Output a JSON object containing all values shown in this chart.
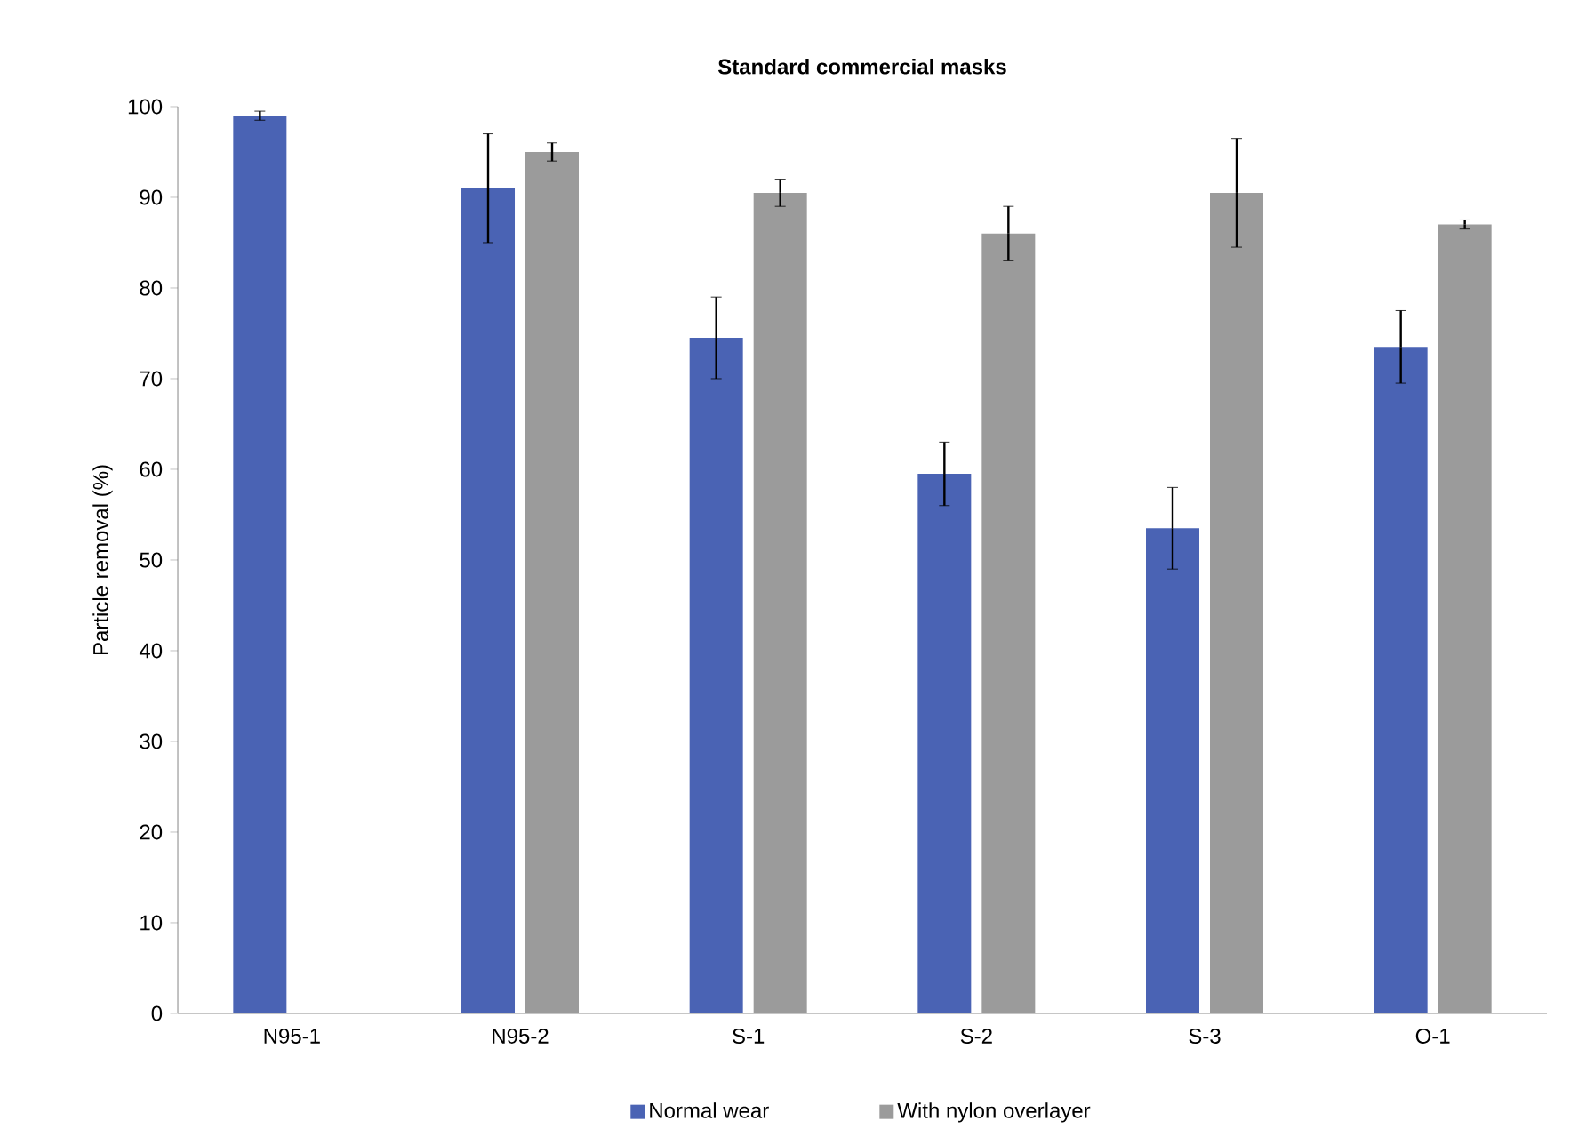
{
  "chart_data": {
    "type": "bar",
    "title": "Standard commercial masks",
    "ylabel": "Particle removal (%)",
    "categories": [
      "N95-1",
      "N95-2",
      "S-1",
      "S-2",
      "S-3",
      "O-1"
    ],
    "series": [
      {
        "name": "Normal wear",
        "color": "#4a63b4",
        "values": [
          99,
          91,
          74.5,
          59.5,
          53.5,
          73.5
        ],
        "errors": [
          0.5,
          6,
          4.5,
          3.5,
          4.5,
          4
        ]
      },
      {
        "name": "With nylon overlayer",
        "color": "#9b9b9b",
        "values": [
          null,
          95,
          90.5,
          86,
          90.5,
          87
        ],
        "errors": [
          null,
          1,
          1.5,
          3,
          6,
          0.5
        ]
      }
    ],
    "ylim": [
      0,
      100
    ],
    "yticks": [
      0,
      10,
      20,
      30,
      40,
      50,
      60,
      70,
      80,
      90,
      100
    ],
    "legend": "bottom"
  }
}
